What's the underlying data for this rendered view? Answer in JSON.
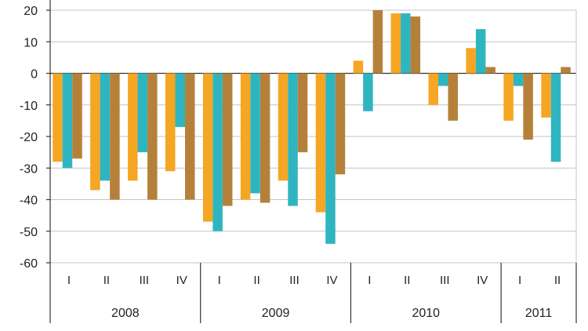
{
  "chart_data": {
    "type": "bar",
    "title": "",
    "xlabel": "",
    "ylabel": "",
    "ylim": [
      -60,
      20
    ],
    "yticks": [
      20,
      10,
      0,
      -10,
      -20,
      -30,
      -40,
      -50,
      -60
    ],
    "grid": true,
    "legend": "none",
    "categories": [
      "I",
      "II",
      "III",
      "IV",
      "I",
      "II",
      "III",
      "IV",
      "I",
      "II",
      "III",
      "IV",
      "I",
      "II"
    ],
    "groups": [
      {
        "label": "2008",
        "count": 4
      },
      {
        "label": "2009",
        "count": 4
      },
      {
        "label": "2010",
        "count": 4
      },
      {
        "label": "2011",
        "count": 2
      }
    ],
    "series": [
      {
        "color": "#F5A623",
        "values": [
          -28,
          -37,
          -34,
          -31,
          -47,
          -40,
          -34,
          -44,
          4,
          19,
          -10,
          8,
          -15,
          -14
        ]
      },
      {
        "color": "#2FB5C0",
        "values": [
          -30,
          -34,
          -25,
          -17,
          -50,
          -38,
          -42,
          -54,
          -12,
          19,
          -4,
          14,
          -4,
          -28
        ]
      },
      {
        "color": "#B5813A",
        "values": [
          -27,
          -40,
          -40,
          -40,
          -42,
          -41,
          -25,
          -32,
          20,
          18,
          -15,
          2,
          -21,
          2
        ]
      }
    ]
  }
}
